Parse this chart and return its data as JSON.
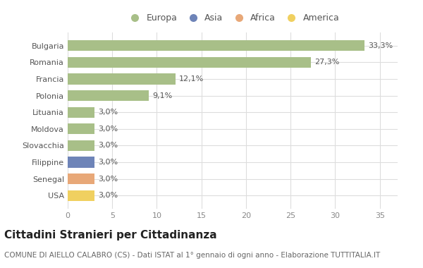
{
  "countries": [
    "USA",
    "Senegal",
    "Filippine",
    "Slovacchia",
    "Moldova",
    "Lituania",
    "Polonia",
    "Francia",
    "Romania",
    "Bulgaria"
  ],
  "values": [
    3.0,
    3.0,
    3.0,
    3.0,
    3.0,
    3.0,
    9.1,
    12.1,
    27.3,
    33.3
  ],
  "labels": [
    "3,0%",
    "3,0%",
    "3,0%",
    "3,0%",
    "3,0%",
    "3,0%",
    "9,1%",
    "12,1%",
    "27,3%",
    "33,3%"
  ],
  "colors": [
    "#f0d060",
    "#e8a878",
    "#6e84b8",
    "#a8bf88",
    "#a8bf88",
    "#a8bf88",
    "#a8bf88",
    "#a8bf88",
    "#a8bf88",
    "#a8bf88"
  ],
  "legend_labels": [
    "Europa",
    "Asia",
    "Africa",
    "America"
  ],
  "legend_colors": [
    "#a8bf88",
    "#6e84b8",
    "#e8a878",
    "#f0d060"
  ],
  "title": "Cittadini Stranieri per Cittadinanza",
  "subtitle": "COMUNE DI AIELLO CALABRO (CS) - Dati ISTAT al 1° gennaio di ogni anno - Elaborazione TUTTITALIA.IT",
  "xlim": [
    0,
    37
  ],
  "xticks": [
    0,
    5,
    10,
    15,
    20,
    25,
    30,
    35
  ],
  "bg_color": "#ffffff",
  "plot_bg_color": "#ffffff",
  "grid_color": "#dddddd",
  "bar_height": 0.65,
  "title_fontsize": 11,
  "subtitle_fontsize": 7.5,
  "label_fontsize": 8,
  "tick_fontsize": 8,
  "legend_fontsize": 9
}
